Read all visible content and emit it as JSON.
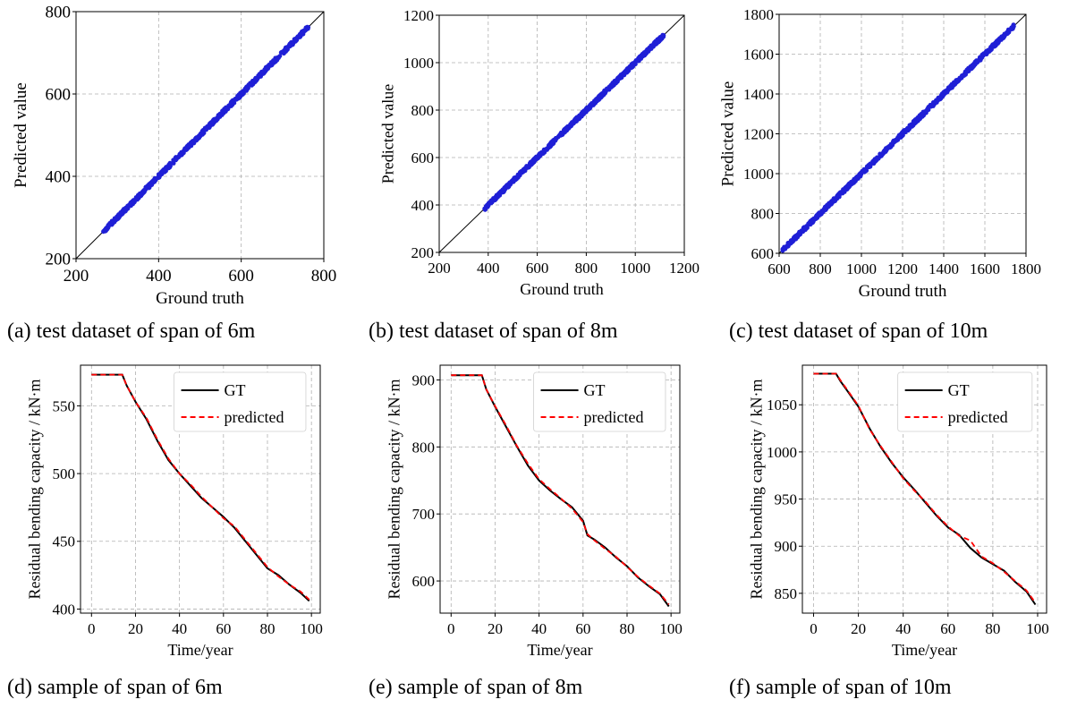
{
  "captions": [
    "(a) test dataset of span of 6m",
    "(b) test dataset of span of 8m",
    "(c) test dataset of span of 10m",
    "(d) sample of span of 6m",
    "(e) sample of span of 8m",
    "(f) sample of span of 10m"
  ],
  "colors": {
    "points": "#1f1fd6",
    "identity_line": "#000000",
    "gt": "#000000",
    "predicted": "#ff0000",
    "grid": "#b0b0b0"
  },
  "chart_data": [
    {
      "type": "scatter",
      "title": "",
      "xlabel": "Ground truth",
      "ylabel": "Predicted value",
      "xlim": [
        200,
        800
      ],
      "ylim": [
        200,
        800
      ],
      "xticks": [
        200,
        400,
        600,
        800
      ],
      "yticks": [
        200,
        400,
        600,
        800
      ],
      "grid": true,
      "identity_line": true,
      "series": [
        {
          "x_range": [
            265,
            762
          ],
          "y_equals_x": true,
          "spread": 5
        }
      ]
    },
    {
      "type": "scatter",
      "title": "",
      "xlabel": "Ground truth",
      "ylabel": "Predicted value",
      "xlim": [
        200,
        1200
      ],
      "ylim": [
        200,
        1200
      ],
      "xticks": [
        200,
        400,
        600,
        800,
        1000,
        1200
      ],
      "yticks": [
        200,
        400,
        600,
        800,
        1000,
        1200
      ],
      "grid": true,
      "identity_line": true,
      "series": [
        {
          "x_range": [
            385,
            1115
          ],
          "y_equals_x": true,
          "spread": 8
        }
      ]
    },
    {
      "type": "scatter",
      "title": "",
      "xlabel": "Ground truth",
      "ylabel": "Predicted value",
      "xlim": [
        600,
        1800
      ],
      "ylim": [
        600,
        1800
      ],
      "xticks": [
        600,
        800,
        1000,
        1200,
        1400,
        1600,
        1800
      ],
      "yticks": [
        600,
        800,
        1000,
        1200,
        1400,
        1600,
        1800
      ],
      "grid": true,
      "identity_line": true,
      "series": [
        {
          "x_range": [
            615,
            1740
          ],
          "y_equals_x": true,
          "spread": 10
        }
      ]
    },
    {
      "type": "line",
      "title": "",
      "xlabel": "Time/year",
      "ylabel": "Residual bending capacity / kN·m",
      "xlim": [
        -5,
        104
      ],
      "ylim": [
        397,
        580
      ],
      "xticks": [
        0,
        20,
        40,
        60,
        80,
        100
      ],
      "yticks": [
        400,
        450,
        500,
        550
      ],
      "grid": true,
      "legend": "top-right",
      "x": [
        0,
        5,
        10,
        14,
        16,
        20,
        25,
        30,
        35,
        40,
        45,
        50,
        55,
        60,
        65,
        70,
        75,
        80,
        85,
        90,
        95,
        99
      ],
      "series": [
        {
          "name": "GT",
          "values": [
            573,
            573,
            573,
            573,
            565,
            553,
            540,
            524,
            510,
            500,
            491,
            482,
            475,
            468,
            460,
            450,
            440,
            430,
            425,
            418,
            412,
            406
          ]
        },
        {
          "name": "predicted",
          "values": [
            573,
            573,
            573,
            573,
            565,
            553,
            541,
            525,
            511,
            500,
            492,
            483,
            475,
            467,
            461,
            451,
            441,
            431,
            424,
            418,
            413,
            407
          ]
        }
      ]
    },
    {
      "type": "line",
      "title": "",
      "xlabel": "Time/year",
      "ylabel": "Residual bending capacity / kN·m",
      "xlim": [
        -5,
        104
      ],
      "ylim": [
        552,
        922
      ],
      "xticks": [
        0,
        20,
        40,
        60,
        80,
        100
      ],
      "yticks": [
        600,
        700,
        800,
        900
      ],
      "grid": true,
      "legend": "top-right",
      "x": [
        0,
        5,
        10,
        14,
        16,
        20,
        25,
        30,
        35,
        40,
        45,
        50,
        55,
        60,
        62,
        65,
        70,
        75,
        80,
        85,
        90,
        95,
        99
      ],
      "series": [
        {
          "name": "GT",
          "values": [
            907,
            907,
            907,
            907,
            886,
            860,
            830,
            800,
            772,
            750,
            735,
            722,
            710,
            690,
            668,
            662,
            650,
            635,
            622,
            605,
            592,
            580,
            562
          ]
        },
        {
          "name": "predicted",
          "values": [
            907,
            907,
            907,
            907,
            886,
            861,
            832,
            801,
            775,
            752,
            737,
            723,
            708,
            688,
            670,
            661,
            648,
            636,
            621,
            606,
            593,
            581,
            565
          ]
        }
      ]
    },
    {
      "type": "line",
      "title": "",
      "xlabel": "Time/year",
      "ylabel": "Residual bending capacity / kN·m",
      "xlim": [
        -5,
        104
      ],
      "ylim": [
        829,
        1092
      ],
      "xticks": [
        0,
        20,
        40,
        60,
        80,
        100
      ],
      "yticks": [
        850,
        900,
        950,
        1000,
        1050
      ],
      "grid": true,
      "legend": "top-right",
      "x": [
        0,
        5,
        10,
        12,
        15,
        20,
        25,
        30,
        35,
        40,
        45,
        50,
        55,
        60,
        65,
        70,
        75,
        80,
        85,
        90,
        95,
        99
      ],
      "series": [
        {
          "name": "GT",
          "values": [
            1083,
            1083,
            1083,
            1075,
            1065,
            1048,
            1025,
            1005,
            988,
            973,
            960,
            946,
            932,
            920,
            912,
            898,
            888,
            881,
            874,
            862,
            852,
            838
          ]
        },
        {
          "name": "predicted",
          "values": [
            1083,
            1083,
            1083,
            1076,
            1066,
            1049,
            1024,
            1006,
            989,
            972,
            959,
            947,
            933,
            921,
            911,
            906,
            889,
            882,
            873,
            863,
            853,
            840
          ]
        }
      ]
    }
  ]
}
